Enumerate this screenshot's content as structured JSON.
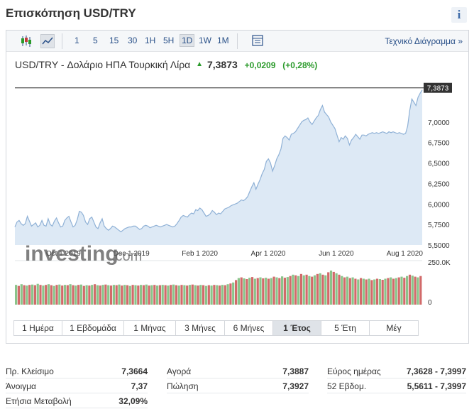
{
  "header": {
    "title": "Επισκόπηση USD/TRY",
    "info_icon": "i"
  },
  "toolbar": {
    "ranges": [
      "1",
      "5",
      "15",
      "30",
      "1H",
      "5H",
      "1D",
      "1W",
      "1M"
    ],
    "active_range": "1D",
    "tech_link": "Τεχνικό Διάγραμμα »",
    "icons": [
      "candlestick-icon",
      "line-chart-icon",
      "table-icon"
    ]
  },
  "quote": {
    "name": "USD/TRY - Δολάριο ΗΠΑ Τουρκική Λίρα",
    "arrow": "▲",
    "price": "7,3873",
    "change": "+0,0209",
    "change_pct": "(+0,28%)"
  },
  "watermark": {
    "brand": "investing",
    "suffix": ".com"
  },
  "colors": {
    "accent": "#2a5189",
    "up": "#2a9a2a",
    "area": "#dde9f5",
    "line": "#8fb1d6",
    "vol_up": "#8ac48a",
    "vol_down": "#d26a6a"
  },
  "chart_data": {
    "type": "area",
    "x_labels": [
      "Oct 1 2019",
      "Dec 1 2019",
      "Feb 1 2020",
      "Apr 1 2020",
      "Jun 1 2020",
      "Aug 1 2020"
    ],
    "y_ticks": [
      "5,5000",
      "5,7500",
      "6,0000",
      "6,2500",
      "6,5000",
      "6,7500",
      "7,0000"
    ],
    "ylim": [
      5.5,
      7.5
    ],
    "last_price_label": "7,3873",
    "volume_ticks": [
      "250.0K",
      "0"
    ],
    "series": [
      {
        "values": [
          5.72,
          5.78,
          5.8,
          5.76,
          5.74,
          5.76,
          5.85,
          5.79,
          5.73,
          5.75,
          5.77,
          5.72,
          5.74,
          5.8,
          5.74,
          5.73,
          5.82,
          5.75,
          5.73,
          5.79,
          5.83,
          5.77,
          5.72,
          5.73,
          5.8,
          5.83,
          5.85,
          5.78,
          5.72,
          5.74,
          5.81,
          5.91,
          5.9,
          5.86,
          5.78,
          5.75,
          5.82,
          5.84,
          5.78,
          5.72,
          5.7,
          5.77,
          5.82,
          5.73,
          5.7,
          5.68,
          5.7,
          5.73,
          5.72,
          5.7,
          5.68,
          5.66,
          5.68,
          5.7,
          5.71,
          5.72,
          5.72,
          5.73,
          5.73,
          5.71,
          5.69,
          5.7,
          5.73,
          5.74,
          5.73,
          5.71,
          5.72,
          5.73,
          5.74,
          5.73,
          5.72,
          5.73,
          5.74,
          5.75,
          5.74,
          5.73,
          5.72,
          5.73,
          5.76,
          5.8,
          5.84,
          5.86,
          5.85,
          5.84,
          5.87,
          5.89,
          5.88,
          5.93,
          5.92,
          5.95,
          5.93,
          5.89,
          5.85,
          5.86,
          5.88,
          5.92,
          5.9,
          5.87,
          5.89,
          5.88,
          5.91,
          5.94,
          5.95,
          5.96,
          5.98,
          5.99,
          6.0,
          6.01,
          6.03,
          6.05,
          6.04,
          6.06,
          6.09,
          6.15,
          6.21,
          6.26,
          6.18,
          6.24,
          6.3,
          6.37,
          6.42,
          6.52,
          6.55,
          6.5,
          6.4,
          6.47,
          6.55,
          6.6,
          6.67,
          6.8,
          6.83,
          6.81,
          6.78,
          6.85,
          6.86,
          6.88,
          6.92,
          6.96,
          7.0,
          7.02,
          7.03,
          7.05,
          7.0,
          6.97,
          7.01,
          7.05,
          7.08,
          7.15,
          7.2,
          7.12,
          7.09,
          7.06,
          7.0,
          6.96,
          6.92,
          6.84,
          6.76,
          6.81,
          6.79,
          6.83,
          6.8,
          6.72,
          6.78,
          6.81,
          6.85,
          6.82,
          6.79,
          6.84,
          6.84,
          6.83,
          6.85,
          6.86,
          6.87,
          6.86,
          6.87,
          6.86,
          6.87,
          6.88,
          6.87,
          6.86,
          6.88,
          6.87,
          6.88,
          6.87,
          6.86,
          6.87,
          6.86,
          6.85,
          6.86,
          6.95,
          7.14,
          7.28,
          7.24,
          7.2,
          7.3,
          7.35,
          7.39
        ]
      }
    ],
    "volume": [
      [
        58,
        "up"
      ],
      [
        55,
        "down"
      ],
      [
        60,
        "up"
      ],
      [
        57,
        "down"
      ],
      [
        56,
        "up"
      ],
      [
        58,
        "down"
      ],
      [
        59,
        "up"
      ],
      [
        57,
        "down"
      ],
      [
        61,
        "up"
      ],
      [
        58,
        "down"
      ],
      [
        56,
        "up"
      ],
      [
        58,
        "down"
      ],
      [
        60,
        "up"
      ],
      [
        57,
        "down"
      ],
      [
        55,
        "up"
      ],
      [
        58,
        "down"
      ],
      [
        59,
        "up"
      ],
      [
        56,
        "down"
      ],
      [
        58,
        "up"
      ],
      [
        57,
        "down"
      ],
      [
        60,
        "up"
      ],
      [
        57,
        "down"
      ],
      [
        56,
        "up"
      ],
      [
        58,
        "down"
      ],
      [
        59,
        "up"
      ],
      [
        55,
        "down"
      ],
      [
        57,
        "up"
      ],
      [
        56,
        "down"
      ],
      [
        58,
        "up"
      ],
      [
        60,
        "down"
      ],
      [
        57,
        "up"
      ],
      [
        56,
        "down"
      ],
      [
        58,
        "up"
      ],
      [
        59,
        "down"
      ],
      [
        57,
        "up"
      ],
      [
        56,
        "down"
      ],
      [
        58,
        "up"
      ],
      [
        57,
        "down"
      ],
      [
        59,
        "up"
      ],
      [
        56,
        "down"
      ],
      [
        58,
        "up"
      ],
      [
        57,
        "down"
      ],
      [
        55,
        "up"
      ],
      [
        58,
        "down"
      ],
      [
        57,
        "up"
      ],
      [
        56,
        "down"
      ],
      [
        58,
        "up"
      ],
      [
        57,
        "down"
      ],
      [
        59,
        "up"
      ],
      [
        56,
        "down"
      ],
      [
        57,
        "up"
      ],
      [
        58,
        "down"
      ],
      [
        56,
        "up"
      ],
      [
        57,
        "down"
      ],
      [
        58,
        "up"
      ],
      [
        57,
        "down"
      ],
      [
        56,
        "up"
      ],
      [
        58,
        "down"
      ],
      [
        59,
        "up"
      ],
      [
        57,
        "down"
      ],
      [
        56,
        "up"
      ],
      [
        58,
        "down"
      ],
      [
        57,
        "up"
      ],
      [
        56,
        "down"
      ],
      [
        58,
        "up"
      ],
      [
        59,
        "down"
      ],
      [
        57,
        "up"
      ],
      [
        56,
        "down"
      ],
      [
        58,
        "up"
      ],
      [
        57,
        "down"
      ],
      [
        55,
        "up"
      ],
      [
        57,
        "down"
      ],
      [
        56,
        "up"
      ],
      [
        58,
        "down"
      ],
      [
        57,
        "up"
      ],
      [
        56,
        "down"
      ],
      [
        58,
        "up"
      ],
      [
        57,
        "down"
      ],
      [
        60,
        "up"
      ],
      [
        62,
        "down"
      ],
      [
        65,
        "up"
      ],
      [
        72,
        "down"
      ],
      [
        78,
        "up"
      ],
      [
        80,
        "down"
      ],
      [
        77,
        "up"
      ],
      [
        75,
        "down"
      ],
      [
        79,
        "up"
      ],
      [
        81,
        "down"
      ],
      [
        76,
        "up"
      ],
      [
        78,
        "down"
      ],
      [
        80,
        "up"
      ],
      [
        77,
        "down"
      ],
      [
        79,
        "up"
      ],
      [
        76,
        "down"
      ],
      [
        78,
        "up"
      ],
      [
        82,
        "down"
      ],
      [
        80,
        "up"
      ],
      [
        78,
        "down"
      ],
      [
        83,
        "up"
      ],
      [
        79,
        "down"
      ],
      [
        81,
        "up"
      ],
      [
        84,
        "down"
      ],
      [
        88,
        "up"
      ],
      [
        86,
        "down"
      ],
      [
        84,
        "up"
      ],
      [
        90,
        "down"
      ],
      [
        86,
        "up"
      ],
      [
        88,
        "down"
      ],
      [
        84,
        "up"
      ],
      [
        82,
        "down"
      ],
      [
        86,
        "up"
      ],
      [
        90,
        "down"
      ],
      [
        92,
        "up"
      ],
      [
        88,
        "down"
      ],
      [
        86,
        "up"
      ],
      [
        95,
        "down"
      ],
      [
        100,
        "up"
      ],
      [
        96,
        "down"
      ],
      [
        92,
        "up"
      ],
      [
        88,
        "down"
      ],
      [
        84,
        "up"
      ],
      [
        80,
        "down"
      ],
      [
        82,
        "up"
      ],
      [
        78,
        "down"
      ],
      [
        80,
        "up"
      ],
      [
        76,
        "down"
      ],
      [
        74,
        "up"
      ],
      [
        78,
        "down"
      ],
      [
        76,
        "up"
      ],
      [
        74,
        "down"
      ],
      [
        76,
        "up"
      ],
      [
        72,
        "down"
      ],
      [
        74,
        "up"
      ],
      [
        76,
        "down"
      ],
      [
        75,
        "up"
      ],
      [
        73,
        "down"
      ],
      [
        76,
        "up"
      ],
      [
        78,
        "down"
      ],
      [
        80,
        "up"
      ],
      [
        76,
        "down"
      ],
      [
        78,
        "up"
      ],
      [
        80,
        "down"
      ],
      [
        82,
        "up"
      ],
      [
        79,
        "down"
      ],
      [
        84,
        "up"
      ],
      [
        88,
        "down"
      ],
      [
        85,
        "up"
      ],
      [
        82,
        "down"
      ],
      [
        80,
        "up"
      ],
      [
        84,
        "down"
      ]
    ]
  },
  "periods": {
    "items": [
      "1 Ημέρα",
      "1 Εβδομάδα",
      "1 Μήνας",
      "3 Μήνες",
      "6 Μήνες",
      "1 Έτος",
      "5 Έτη",
      "Μέγ"
    ],
    "active": "1 Έτος"
  },
  "stats": {
    "col1": [
      {
        "label": "Πρ. Κλείσιμο",
        "value": "7,3664"
      },
      {
        "label": "Άνοιγμα",
        "value": "7,37"
      },
      {
        "label": "Ετήσια Μεταβολή",
        "value": "32,09%"
      }
    ],
    "col2": [
      {
        "label": "Αγορά",
        "value": "7,3887"
      },
      {
        "label": "Πώληση",
        "value": "7,3927"
      }
    ],
    "col3": [
      {
        "label": "Εύρος ημέρας",
        "value": "7,3628 - 7,3997"
      },
      {
        "label": "52 Εβδομ.",
        "value": "5,5611 - 7,3997"
      }
    ]
  }
}
